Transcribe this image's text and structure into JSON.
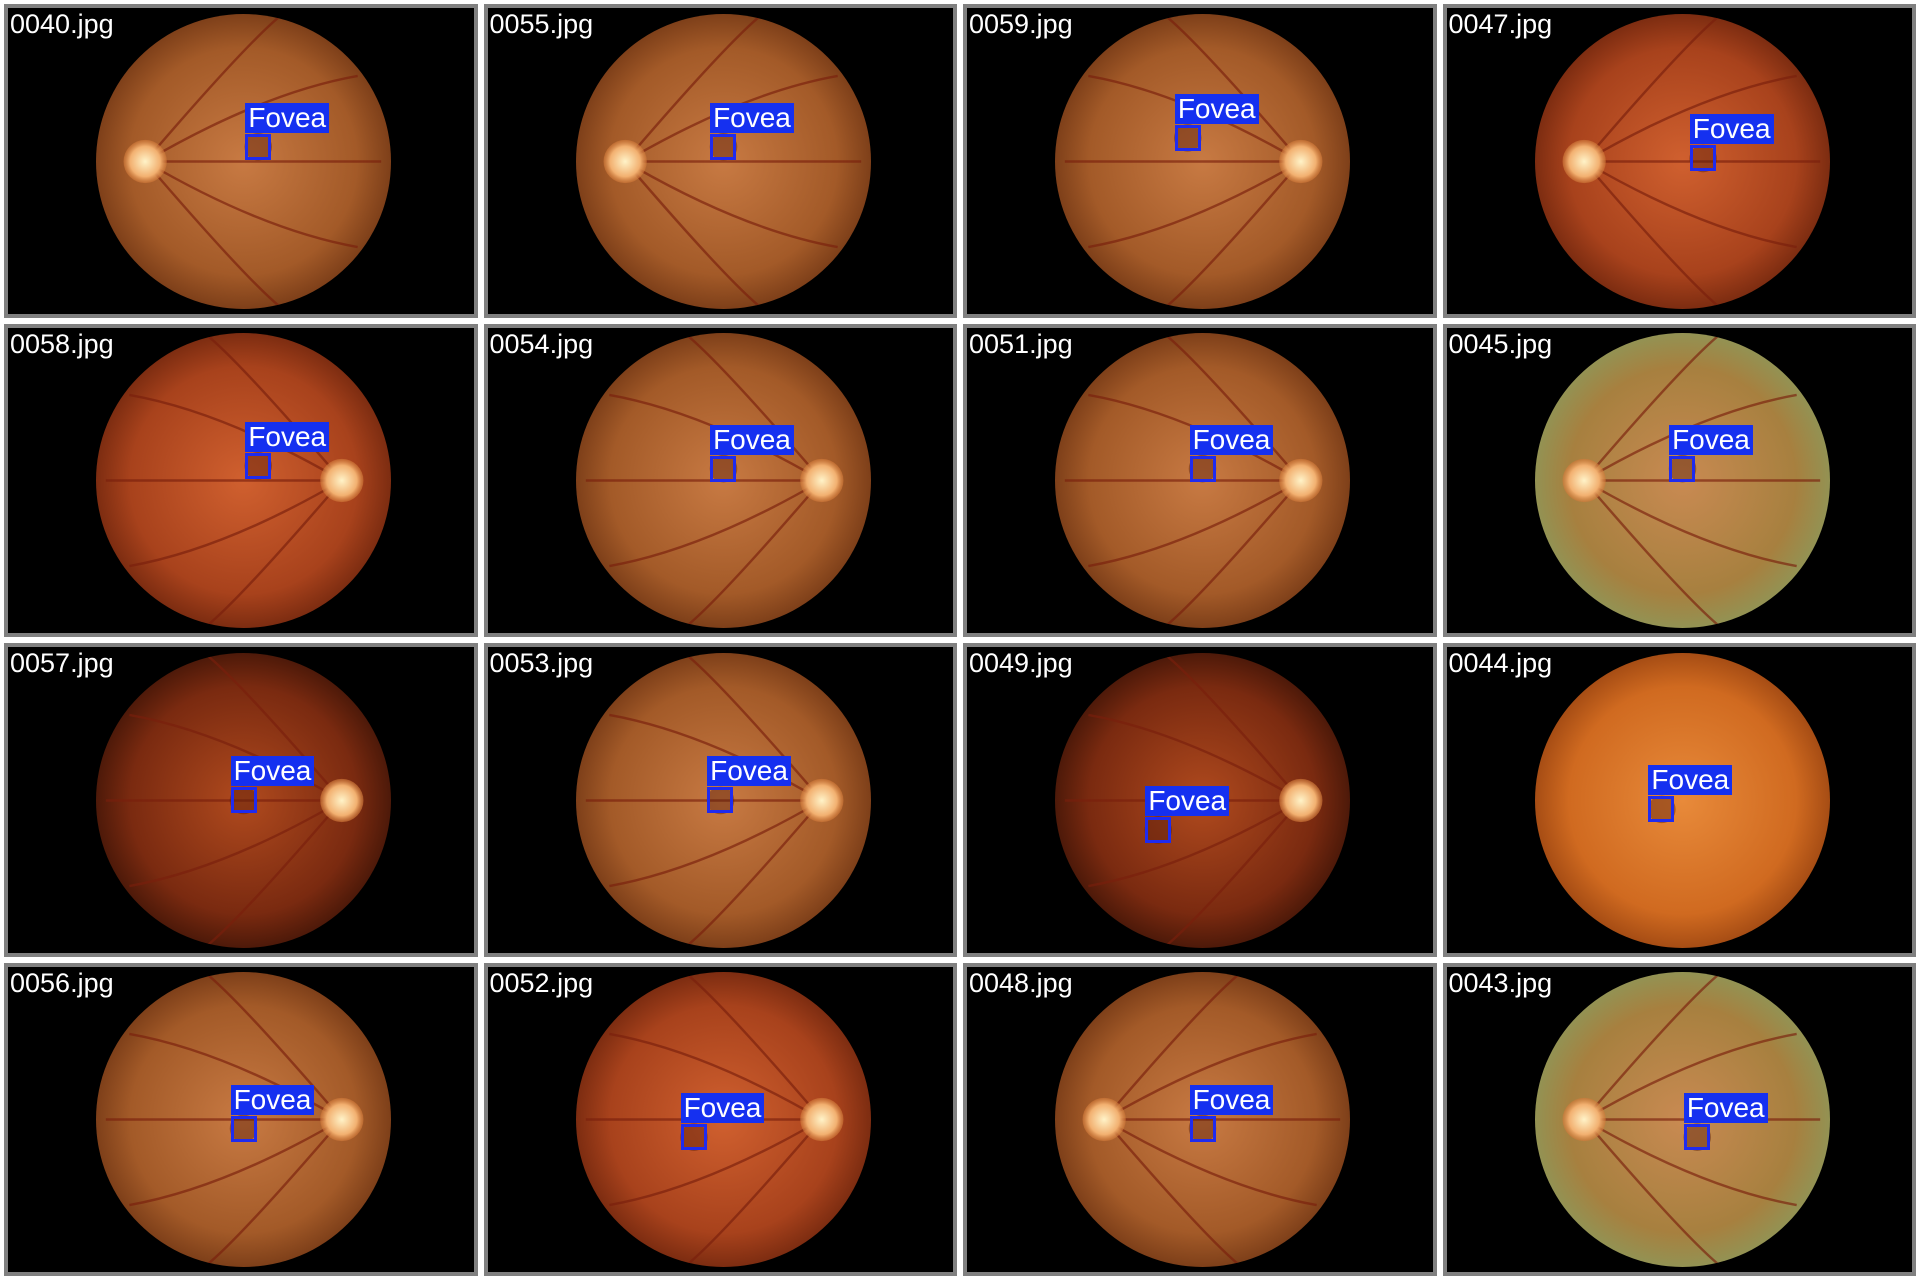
{
  "label_text": "Fovea",
  "colors": {
    "box": "#1e2bf0",
    "label_bg": "#1530f0",
    "tile_border": "#808080",
    "background": "#000000"
  },
  "tiles": [
    {
      "filename": "0040.jpg",
      "disc": "left",
      "tone": "orange",
      "fovea": [
        0.55,
        0.45
      ]
    },
    {
      "filename": "0055.jpg",
      "disc": "left",
      "tone": "orange",
      "fovea": [
        0.5,
        0.45
      ]
    },
    {
      "filename": "0059.jpg",
      "disc": "right",
      "tone": "orange",
      "fovea": [
        0.45,
        0.42
      ]
    },
    {
      "filename": "0047.jpg",
      "disc": "left",
      "tone": "red",
      "fovea": [
        0.57,
        0.49
      ]
    },
    {
      "filename": "0058.jpg",
      "disc": "right",
      "tone": "red",
      "fovea": [
        0.55,
        0.45
      ]
    },
    {
      "filename": "0054.jpg",
      "disc": "right",
      "tone": "orange",
      "fovea": [
        0.5,
        0.46
      ]
    },
    {
      "filename": "0051.jpg",
      "disc": "right",
      "tone": "orange",
      "fovea": [
        0.5,
        0.46
      ]
    },
    {
      "filename": "0045.jpg",
      "disc": "left",
      "tone": "green",
      "fovea": [
        0.5,
        0.46
      ]
    },
    {
      "filename": "0057.jpg",
      "disc": "right",
      "tone": "dark",
      "fovea": [
        0.5,
        0.5
      ]
    },
    {
      "filename": "0053.jpg",
      "disc": "right",
      "tone": "orange",
      "fovea": [
        0.49,
        0.5
      ]
    },
    {
      "filename": "0049.jpg",
      "disc": "right",
      "tone": "dark",
      "fovea": [
        0.35,
        0.6
      ]
    },
    {
      "filename": "0044.jpg",
      "disc": "none",
      "tone": "bright",
      "fovea": [
        0.43,
        0.53
      ]
    },
    {
      "filename": "0056.jpg",
      "disc": "right",
      "tone": "orange",
      "fovea": [
        0.5,
        0.53
      ]
    },
    {
      "filename": "0052.jpg",
      "disc": "right",
      "tone": "red",
      "fovea": [
        0.4,
        0.56
      ]
    },
    {
      "filename": "0048.jpg",
      "disc": "left",
      "tone": "orange",
      "fovea": [
        0.5,
        0.53
      ]
    },
    {
      "filename": "0043.jpg",
      "disc": "left",
      "tone": "green",
      "fovea": [
        0.55,
        0.56
      ]
    }
  ]
}
